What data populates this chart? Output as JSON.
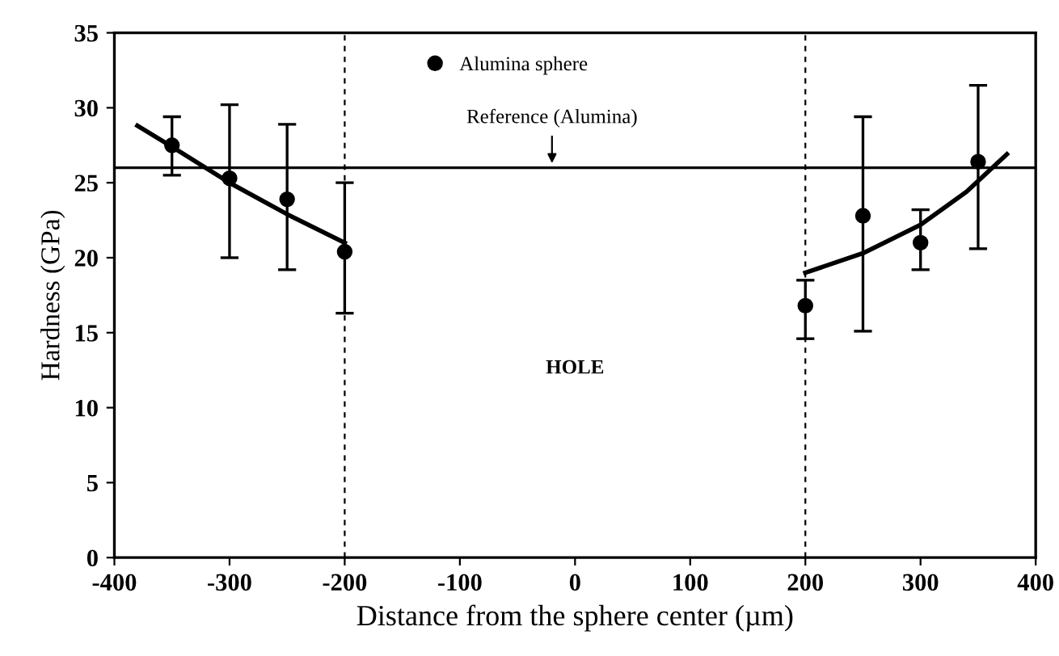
{
  "chart_data": {
    "type": "scatter",
    "xlabel": "Distance from the sphere center (µm)",
    "ylabel": "Hardness (GPa)",
    "xlim": [
      -400,
      400
    ],
    "xticks": [
      -400,
      -300,
      -200,
      -100,
      0,
      100,
      200,
      300,
      400
    ],
    "ylim": [
      0,
      35
    ],
    "yticks": [
      0,
      5,
      10,
      15,
      20,
      25,
      30,
      35
    ],
    "grid": false,
    "legend": "top",
    "series": [
      {
        "name": "Alumina sphere",
        "marker": "circle",
        "color": "#000000",
        "x": [
          -350,
          -300,
          -250,
          -200,
          200,
          250,
          300,
          350
        ],
        "values": [
          27.5,
          25.3,
          23.9,
          20.4,
          16.8,
          22.8,
          21.0,
          26.4
        ],
        "errors": [
          [
            25.5,
            29.4
          ],
          [
            20.0,
            30.2
          ],
          [
            19.2,
            28.9
          ],
          [
            16.3,
            25.0
          ],
          [
            14.6,
            18.5
          ],
          [
            15.1,
            29.4
          ],
          [
            19.2,
            23.2
          ],
          [
            20.6,
            31.5
          ]
        ]
      },
      {
        "type": "line",
        "marker": "none",
        "color": "#000000",
        "x": [
          -380,
          -350,
          -300,
          -250,
          -200
        ],
        "values": [
          28.8,
          27.4,
          25.0,
          22.9,
          21.0
        ]
      },
      {
        "type": "line",
        "marker": "none",
        "color": "#000000",
        "x": [
          200,
          250,
          300,
          340,
          375
        ],
        "values": [
          19.0,
          20.3,
          22.2,
          24.4,
          26.9
        ]
      }
    ],
    "ref_lines": [
      {
        "axis": "y",
        "value": 26,
        "color": "#000000",
        "line_style": "solid"
      },
      {
        "axis": "x",
        "value": -200,
        "color": "#000000",
        "line_style": "dashed"
      },
      {
        "axis": "x",
        "value": 200,
        "color": "#000000",
        "line_style": "dashed"
      }
    ],
    "annotations": [
      {
        "text": "Reference (Alumina)",
        "x": -20,
        "y": 26
      },
      "HOLE"
    ]
  }
}
